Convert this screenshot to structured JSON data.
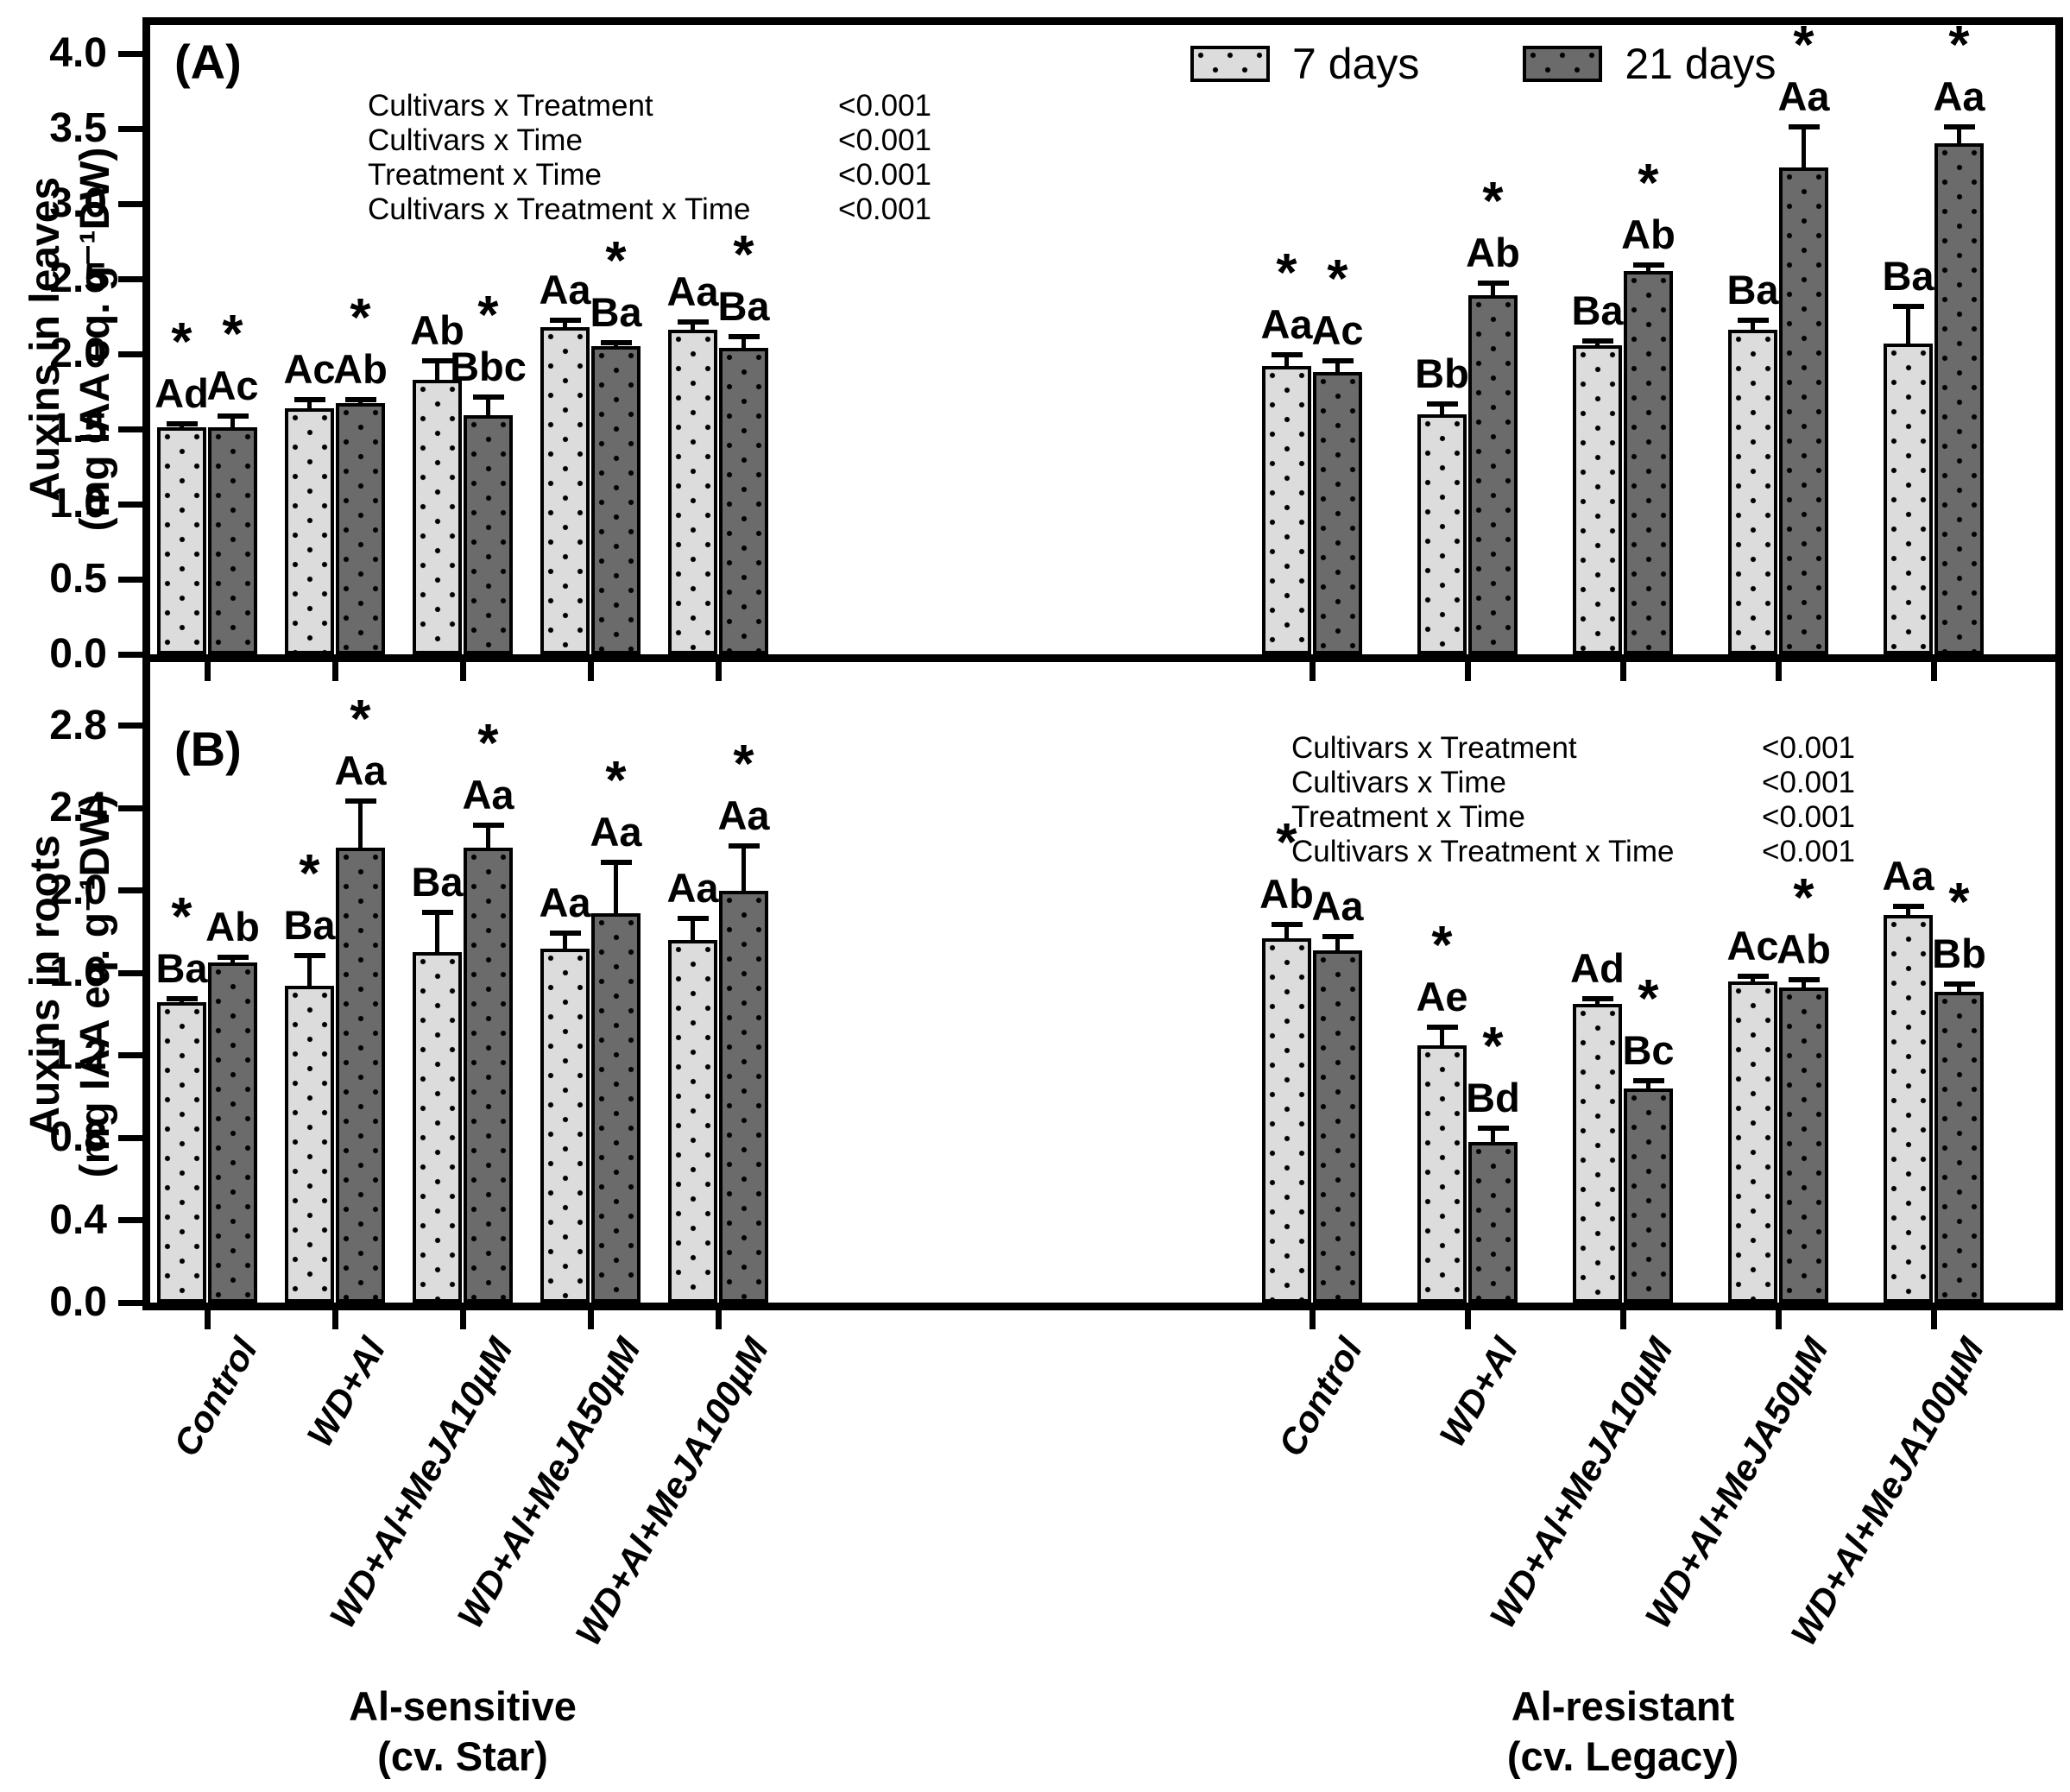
{
  "legend": {
    "items": [
      {
        "label": "7 days",
        "swatch": "light-dotted",
        "color": "#dcdcdc"
      },
      {
        "label": "21 days",
        "swatch": "dark-dotted",
        "color": "#6b6b6b"
      }
    ]
  },
  "stats": {
    "rows": [
      {
        "label": "Cultivars x Treatment",
        "value": "<0.001"
      },
      {
        "label": "Cultivars x Time",
        "value": "<0.001"
      },
      {
        "label": "Treatment x Time",
        "value": "<0.001"
      },
      {
        "label": "Cultivars x Treatment x Time",
        "value": "<0.001"
      }
    ]
  },
  "treatments": [
    "Control",
    "WD+Al",
    "WD+Al+MeJA10µM",
    "WD+Al+MeJA50µM",
    "WD+Al+MeJA100µM"
  ],
  "clusters": [
    {
      "title": "Al-sensitive",
      "subtitle": "(cv. Star)"
    },
    {
      "title": "Al-resistant",
      "subtitle": "(cv. Legacy)"
    }
  ],
  "chart_data": [
    {
      "type": "bar",
      "panel_label": "(A)",
      "ylabel": [
        "Auxins in leaves",
        "(mg IAA eq. g⁻¹DW)"
      ],
      "ylim": [
        0,
        4.19
      ],
      "yticks": [
        0,
        0.5,
        1.0,
        1.5,
        2.0,
        2.5,
        3.0,
        3.5,
        4.0
      ],
      "grid": false,
      "legend_position": "top-right",
      "categories": [
        "Control",
        "WD+Al",
        "WD+Al+MeJA10µM",
        "WD+Al+MeJA50µM",
        "WD+Al+MeJA100µM"
      ],
      "series": [
        {
          "name": "7 days",
          "cluster": "Al-sensitive (cv. Star)",
          "values": [
            1.51,
            1.64,
            1.83,
            2.18,
            2.16
          ],
          "se": [
            0.03,
            0.06,
            0.13,
            0.05,
            0.06
          ],
          "letters": [
            "Ad",
            "Ac",
            "Ab",
            "Aa",
            "Aa"
          ],
          "sig": [
            true,
            false,
            false,
            false,
            false
          ]
        },
        {
          "name": "21 days",
          "cluster": "Al-sensitive (cv. Star)",
          "values": [
            1.51,
            1.67,
            1.59,
            2.05,
            2.04
          ],
          "se": [
            0.08,
            0.03,
            0.13,
            0.03,
            0.08
          ],
          "letters": [
            "Ac",
            "Ab",
            "Bbc",
            "Ba",
            "Ba"
          ],
          "sig": [
            true,
            true,
            true,
            true,
            true
          ]
        },
        {
          "name": "7 days",
          "cluster": "Al-resistant (cv. Legacy)",
          "values": [
            1.92,
            1.6,
            2.06,
            2.16,
            2.07
          ],
          "se": [
            0.08,
            0.07,
            0.03,
            0.07,
            0.25
          ],
          "letters": [
            "Aa",
            "Bb",
            "Ba",
            "Ba",
            "Ba"
          ],
          "sig": [
            true,
            false,
            false,
            false,
            false
          ]
        },
        {
          "name": "21 days",
          "cluster": "Al-resistant (cv. Legacy)",
          "values": [
            1.88,
            2.39,
            2.55,
            3.24,
            3.4
          ],
          "se": [
            0.08,
            0.09,
            0.05,
            0.28,
            0.12
          ],
          "letters": [
            "Ac",
            "Ab",
            "Ab",
            "Aa",
            "Aa"
          ],
          "sig": [
            true,
            true,
            true,
            true,
            true
          ]
        }
      ]
    },
    {
      "type": "bar",
      "panel_label": "(B)",
      "ylabel": [
        "Auxins in roots",
        "(mg IAA eq. g⁻¹DW)"
      ],
      "ylim": [
        0,
        3.11
      ],
      "yticks": [
        0,
        0.4,
        0.8,
        1.2,
        1.6,
        2.0,
        2.4,
        2.8
      ],
      "grid": false,
      "legend_position": "none",
      "categories": [
        "Control",
        "WD+Al",
        "WD+Al+MeJA10µM",
        "WD+Al+MeJA50µM",
        "WD+Al+MeJA100µM"
      ],
      "series": [
        {
          "name": "7 days",
          "cluster": "Al-sensitive (cv. Star)",
          "values": [
            1.46,
            1.54,
            1.7,
            1.72,
            1.76
          ],
          "se": [
            0.02,
            0.15,
            0.2,
            0.08,
            0.11
          ],
          "letters": [
            "Ba",
            "Ba",
            "Ba",
            "Aa",
            "Aa"
          ],
          "sig": [
            true,
            true,
            false,
            false,
            false
          ]
        },
        {
          "name": "21 days",
          "cluster": "Al-sensitive (cv. Star)",
          "values": [
            1.65,
            2.21,
            2.21,
            1.89,
            2.0
          ],
          "se": [
            0.03,
            0.23,
            0.11,
            0.25,
            0.22
          ],
          "letters": [
            "Ab",
            "Aa",
            "Aa",
            "Aa",
            "Aa"
          ],
          "sig": [
            false,
            true,
            true,
            true,
            true
          ]
        },
        {
          "name": "7 days",
          "cluster": "Al-resistant (cv. Legacy)",
          "values": [
            1.77,
            1.25,
            1.45,
            1.56,
            1.88
          ],
          "se": [
            0.07,
            0.09,
            0.03,
            0.03,
            0.05
          ],
          "letters": [
            "Ab",
            "Ae",
            "Ad",
            "Ac",
            "Aa"
          ],
          "sig": [
            true,
            true,
            false,
            false,
            false
          ]
        },
        {
          "name": "21 days",
          "cluster": "Al-resistant (cv. Legacy)",
          "values": [
            1.71,
            0.78,
            1.04,
            1.53,
            1.51
          ],
          "se": [
            0.07,
            0.07,
            0.04,
            0.04,
            0.04
          ],
          "letters": [
            "Aa",
            "Bd",
            "Bc",
            "Ab",
            "Bb"
          ],
          "sig": [
            false,
            true,
            true,
            true,
            true
          ]
        }
      ]
    }
  ]
}
